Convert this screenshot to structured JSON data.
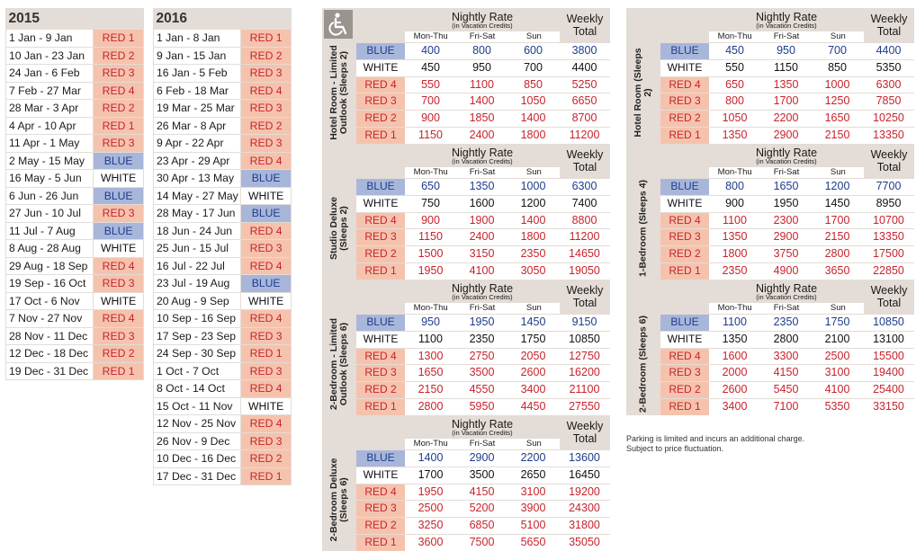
{
  "season_2015": {
    "year": "2015",
    "rows": [
      {
        "dates": "1 Jan - 9 Jan",
        "season": "RED 1",
        "type": "red"
      },
      {
        "dates": "10 Jan - 23 Jan",
        "season": "RED 2",
        "type": "red"
      },
      {
        "dates": "24 Jan - 6 Feb",
        "season": "RED 3",
        "type": "red"
      },
      {
        "dates": "7 Feb - 27 Mar",
        "season": "RED 4",
        "type": "red"
      },
      {
        "dates": "28 Mar - 3 Apr",
        "season": "RED 2",
        "type": "red"
      },
      {
        "dates": "4 Apr - 10 Apr",
        "season": "RED 1",
        "type": "red"
      },
      {
        "dates": "11 Apr - 1 May",
        "season": "RED 3",
        "type": "red"
      },
      {
        "dates": "2 May - 15 May",
        "season": "BLUE",
        "type": "blue"
      },
      {
        "dates": "16 May - 5 Jun",
        "season": "WHITE",
        "type": "white"
      },
      {
        "dates": "6 Jun - 26 Jun",
        "season": "BLUE",
        "type": "blue"
      },
      {
        "dates": "27 Jun - 10 Jul",
        "season": "RED 3",
        "type": "red"
      },
      {
        "dates": "11 Jul - 7 Aug",
        "season": "BLUE",
        "type": "blue"
      },
      {
        "dates": "8 Aug - 28 Aug",
        "season": "WHITE",
        "type": "white"
      },
      {
        "dates": "29 Aug - 18 Sep",
        "season": "RED 4",
        "type": "red"
      },
      {
        "dates": "19 Sep - 16 Oct",
        "season": "RED 3",
        "type": "red"
      },
      {
        "dates": "17 Oct - 6 Nov",
        "season": "WHITE",
        "type": "white"
      },
      {
        "dates": "7 Nov - 27 Nov",
        "season": "RED 4",
        "type": "red"
      },
      {
        "dates": "28 Nov - 11 Dec",
        "season": "RED 3",
        "type": "red"
      },
      {
        "dates": "12 Dec - 18 Dec",
        "season": "RED 2",
        "type": "red"
      },
      {
        "dates": "19 Dec - 31 Dec",
        "season": "RED 1",
        "type": "red"
      }
    ]
  },
  "season_2016": {
    "year": "2016",
    "rows": [
      {
        "dates": "1 Jan - 8 Jan",
        "season": "RED 1",
        "type": "red"
      },
      {
        "dates": "9 Jan - 15 Jan",
        "season": "RED 2",
        "type": "red"
      },
      {
        "dates": "16 Jan - 5 Feb",
        "season": "RED 3",
        "type": "red"
      },
      {
        "dates": "6 Feb - 18 Mar",
        "season": "RED 4",
        "type": "red"
      },
      {
        "dates": "19 Mar - 25 Mar",
        "season": "RED 3",
        "type": "red"
      },
      {
        "dates": "26 Mar - 8 Apr",
        "season": "RED 2",
        "type": "red"
      },
      {
        "dates": "9 Apr - 22 Apr",
        "season": "RED 3",
        "type": "red"
      },
      {
        "dates": "23 Apr - 29 Apr",
        "season": "RED 4",
        "type": "red"
      },
      {
        "dates": "30 Apr - 13 May",
        "season": "BLUE",
        "type": "blue"
      },
      {
        "dates": "14 May - 27 May",
        "season": "WHITE",
        "type": "white"
      },
      {
        "dates": "28 May - 17 Jun",
        "season": "BLUE",
        "type": "blue"
      },
      {
        "dates": "18 Jun - 24 Jun",
        "season": "RED 4",
        "type": "red"
      },
      {
        "dates": "25 Jun - 15 Jul",
        "season": "RED 3",
        "type": "red"
      },
      {
        "dates": "16 Jul - 22 Jul",
        "season": "RED 4",
        "type": "red"
      },
      {
        "dates": "23 Jul - 19 Aug",
        "season": "BLUE",
        "type": "blue"
      },
      {
        "dates": "20 Aug - 9 Sep",
        "season": "WHITE",
        "type": "white"
      },
      {
        "dates": "10 Sep - 16 Sep",
        "season": "RED 4",
        "type": "red"
      },
      {
        "dates": "17 Sep - 23 Sep",
        "season": "RED 3",
        "type": "red"
      },
      {
        "dates": "24 Sep - 30 Sep",
        "season": "RED 1",
        "type": "red"
      },
      {
        "dates": "1 Oct - 7 Oct",
        "season": "RED 3",
        "type": "red"
      },
      {
        "dates": "8 Oct - 14 Oct",
        "season": "RED 4",
        "type": "red"
      },
      {
        "dates": "15 Oct - 11 Nov",
        "season": "WHITE",
        "type": "white"
      },
      {
        "dates": "12 Nov - 25 Nov",
        "season": "RED 4",
        "type": "red"
      },
      {
        "dates": "26 Nov - 9 Dec",
        "season": "RED 3",
        "type": "red"
      },
      {
        "dates": "10 Dec - 16 Dec",
        "season": "RED 2",
        "type": "red"
      },
      {
        "dates": "17 Dec - 31 Dec",
        "season": "RED 1",
        "type": "red"
      }
    ]
  },
  "rate_header": {
    "title": "Nightly Rate",
    "subtitle": "(in Vacation Credits)",
    "days": [
      "Mon-Thu",
      "Fri-Sat",
      "Sun"
    ],
    "weekly": "Weekly Total"
  },
  "accessibility_icon": "wheelchair-icon",
  "left_grid": [
    {
      "label": "Hotel Room - Limited Outlook (Sleeps 2)",
      "rows": [
        {
          "s": "BLUE",
          "t": "blue",
          "v": [
            "400",
            "800",
            "600",
            "3800"
          ]
        },
        {
          "s": "WHITE",
          "t": "white",
          "v": [
            "450",
            "950",
            "700",
            "4400"
          ]
        },
        {
          "s": "RED 4",
          "t": "red",
          "v": [
            "550",
            "1100",
            "850",
            "5250"
          ]
        },
        {
          "s": "RED 3",
          "t": "red",
          "v": [
            "700",
            "1400",
            "1050",
            "6650"
          ]
        },
        {
          "s": "RED 2",
          "t": "red",
          "v": [
            "900",
            "1850",
            "1400",
            "8700"
          ]
        },
        {
          "s": "RED 1",
          "t": "red",
          "v": [
            "1150",
            "2400",
            "1800",
            "11200"
          ]
        }
      ]
    },
    {
      "label": "Studio Deluxe (Sleeps 2)",
      "rows": [
        {
          "s": "BLUE",
          "t": "blue",
          "v": [
            "650",
            "1350",
            "1000",
            "6300"
          ]
        },
        {
          "s": "WHITE",
          "t": "white",
          "v": [
            "750",
            "1600",
            "1200",
            "7400"
          ]
        },
        {
          "s": "RED 4",
          "t": "red",
          "v": [
            "900",
            "1900",
            "1400",
            "8800"
          ]
        },
        {
          "s": "RED 3",
          "t": "red",
          "v": [
            "1150",
            "2400",
            "1800",
            "11200"
          ]
        },
        {
          "s": "RED 2",
          "t": "red",
          "v": [
            "1500",
            "3150",
            "2350",
            "14650"
          ]
        },
        {
          "s": "RED 1",
          "t": "red",
          "v": [
            "1950",
            "4100",
            "3050",
            "19050"
          ]
        }
      ]
    },
    {
      "label": "2-Bedroom - Limited Outlook (Sleeps 6)",
      "rows": [
        {
          "s": "BLUE",
          "t": "blue",
          "v": [
            "950",
            "1950",
            "1450",
            "9150"
          ]
        },
        {
          "s": "WHITE",
          "t": "white",
          "v": [
            "1100",
            "2350",
            "1750",
            "10850"
          ]
        },
        {
          "s": "RED 4",
          "t": "red",
          "v": [
            "1300",
            "2750",
            "2050",
            "12750"
          ]
        },
        {
          "s": "RED 3",
          "t": "red",
          "v": [
            "1650",
            "3500",
            "2600",
            "16200"
          ]
        },
        {
          "s": "RED 2",
          "t": "red",
          "v": [
            "2150",
            "4550",
            "3400",
            "21100"
          ]
        },
        {
          "s": "RED 1",
          "t": "red",
          "v": [
            "2800",
            "5950",
            "4450",
            "27550"
          ]
        }
      ]
    },
    {
      "label": "2-Bedroom Deluxe (Sleeps 6)",
      "rows": [
        {
          "s": "BLUE",
          "t": "blue",
          "v": [
            "1400",
            "2900",
            "2200",
            "13600"
          ]
        },
        {
          "s": "WHITE",
          "t": "white",
          "v": [
            "1700",
            "3500",
            "2650",
            "16450"
          ]
        },
        {
          "s": "RED 4",
          "t": "red",
          "v": [
            "1950",
            "4150",
            "3100",
            "19200"
          ]
        },
        {
          "s": "RED 3",
          "t": "red",
          "v": [
            "2500",
            "5200",
            "3900",
            "24300"
          ]
        },
        {
          "s": "RED 2",
          "t": "red",
          "v": [
            "3250",
            "6850",
            "5100",
            "31800"
          ]
        },
        {
          "s": "RED 1",
          "t": "red",
          "v": [
            "3600",
            "7500",
            "5650",
            "35050"
          ]
        }
      ]
    }
  ],
  "right_grid": [
    {
      "label": "Hotel Room (Sleeps 2)",
      "rows": [
        {
          "s": "BLUE",
          "t": "blue",
          "v": [
            "450",
            "950",
            "700",
            "4400"
          ]
        },
        {
          "s": "WHITE",
          "t": "white",
          "v": [
            "550",
            "1150",
            "850",
            "5350"
          ]
        },
        {
          "s": "RED 4",
          "t": "red",
          "v": [
            "650",
            "1350",
            "1000",
            "6300"
          ]
        },
        {
          "s": "RED 3",
          "t": "red",
          "v": [
            "800",
            "1700",
            "1250",
            "7850"
          ]
        },
        {
          "s": "RED 2",
          "t": "red",
          "v": [
            "1050",
            "2200",
            "1650",
            "10250"
          ]
        },
        {
          "s": "RED 1",
          "t": "red",
          "v": [
            "1350",
            "2900",
            "2150",
            "13350"
          ]
        }
      ]
    },
    {
      "label": "1-Bedroom (Sleeps 4)",
      "rows": [
        {
          "s": "BLUE",
          "t": "blue",
          "v": [
            "800",
            "1650",
            "1200",
            "7700"
          ]
        },
        {
          "s": "WHITE",
          "t": "white",
          "v": [
            "900",
            "1950",
            "1450",
            "8950"
          ]
        },
        {
          "s": "RED 4",
          "t": "red",
          "v": [
            "1100",
            "2300",
            "1700",
            "10700"
          ]
        },
        {
          "s": "RED 3",
          "t": "red",
          "v": [
            "1350",
            "2900",
            "2150",
            "13350"
          ]
        },
        {
          "s": "RED 2",
          "t": "red",
          "v": [
            "1800",
            "3750",
            "2800",
            "17500"
          ]
        },
        {
          "s": "RED 1",
          "t": "red",
          "v": [
            "2350",
            "4900",
            "3650",
            "22850"
          ]
        }
      ]
    },
    {
      "label": "2-Bedroom (Sleeps 6)",
      "rows": [
        {
          "s": "BLUE",
          "t": "blue",
          "v": [
            "1100",
            "2350",
            "1750",
            "10850"
          ]
        },
        {
          "s": "WHITE",
          "t": "white",
          "v": [
            "1350",
            "2800",
            "2100",
            "13100"
          ]
        },
        {
          "s": "RED 4",
          "t": "red",
          "v": [
            "1600",
            "3300",
            "2500",
            "15500"
          ]
        },
        {
          "s": "RED 3",
          "t": "red",
          "v": [
            "2000",
            "4150",
            "3100",
            "19400"
          ]
        },
        {
          "s": "RED 2",
          "t": "red",
          "v": [
            "2600",
            "5450",
            "4100",
            "25400"
          ]
        },
        {
          "s": "RED 1",
          "t": "red",
          "v": [
            "3400",
            "7100",
            "5350",
            "33150"
          ]
        }
      ]
    }
  ],
  "note": {
    "line1": "Parking is limited and incurs an additional charge.",
    "line2": "Subject to price fluctuation."
  },
  "colors": {
    "red_bg": "#f5c3ad",
    "red_text": "#c8232c",
    "blue_bg": "#a8b6da",
    "blue_text": "#1d3c8c",
    "panel": "#e4dcd6"
  }
}
